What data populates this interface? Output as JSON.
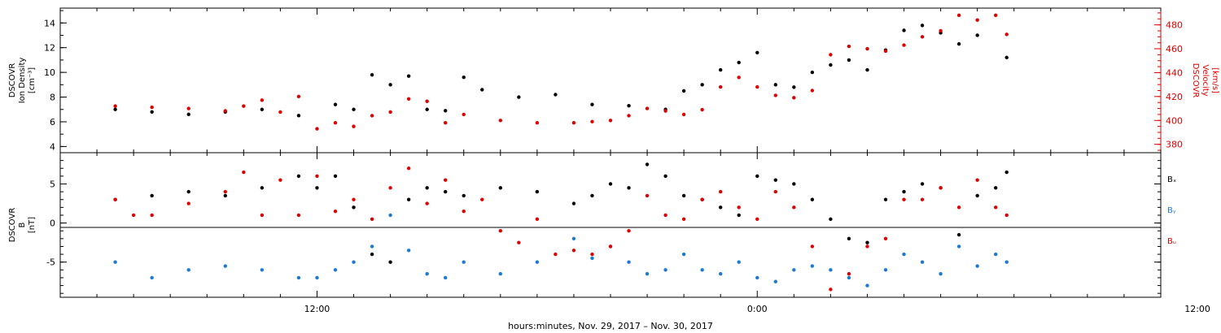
{
  "chart_data": [
    {
      "type": "scatter",
      "panel": "top",
      "y_left_label_lines": [
        "DSCOVR",
        "Ion Density",
        "[cm⁻³]"
      ],
      "y_right_label_lines": [
        "DSCOVR",
        "Velocity",
        "[km/s]"
      ],
      "ylim_left": [
        3.5,
        15.2
      ],
      "ylim_right": [
        373,
        494
      ],
      "yticks_left": [
        "4",
        "6",
        "8",
        "10",
        "12",
        "14"
      ],
      "yticks_right": [
        "380",
        "400",
        "420",
        "440",
        "460",
        "480"
      ],
      "series": [
        {
          "color": "#000000",
          "axis": "left",
          "x": [
            6.5,
            7.5,
            8.5,
            9.5,
            10.5,
            11.5,
            12.5,
            13.0,
            13.5,
            14.0,
            14.5,
            15.0,
            15.5,
            16.0,
            16.5,
            17.5,
            18.5,
            19.5,
            20.5,
            21.5,
            22.0,
            22.5,
            23.0,
            23.5,
            24.0,
            24.5,
            25.0,
            25.5,
            26.0,
            26.5,
            27.0,
            27.5,
            28.0,
            28.5,
            29.0,
            29.5,
            30.0,
            30.8
          ],
          "y": [
            7.0,
            6.8,
            6.6,
            6.8,
            7.0,
            6.5,
            7.4,
            7.0,
            9.8,
            9.0,
            9.7,
            7.0,
            6.9,
            9.6,
            8.6,
            8.0,
            8.2,
            7.4,
            7.3,
            7.0,
            8.5,
            9.0,
            10.2,
            10.8,
            11.6,
            9.0,
            8.8,
            10.0,
            10.6,
            11.0,
            10.2,
            11.8,
            13.4,
            13.8,
            13.2,
            12.3,
            13.0,
            11.2
          ]
        },
        {
          "color": "#e00000",
          "axis": "right",
          "x": [
            6.5,
            7.5,
            8.5,
            9.5,
            10.0,
            10.5,
            11.0,
            11.5,
            12.0,
            12.5,
            13.0,
            13.5,
            14.0,
            14.5,
            15.0,
            15.5,
            16.0,
            17.0,
            18.0,
            19.0,
            19.5,
            20.0,
            20.5,
            21.0,
            21.5,
            22.0,
            22.5,
            23.0,
            23.5,
            24.0,
            24.5,
            25.0,
            25.5,
            26.0,
            26.5,
            27.0,
            27.5,
            28.0,
            28.5,
            29.0,
            29.5,
            30.0,
            30.5,
            30.8
          ],
          "y": [
            412,
            411,
            410,
            408,
            412,
            417,
            407,
            420,
            393,
            398,
            395,
            404,
            407,
            418,
            416,
            398,
            405,
            400,
            398,
            398,
            399,
            400,
            404,
            410,
            408,
            405,
            409,
            428,
            436,
            428,
            421,
            419,
            425,
            455,
            462,
            460,
            458,
            463,
            470,
            475,
            488,
            484,
            488,
            472
          ]
        }
      ]
    },
    {
      "type": "scatter",
      "panel": "bottom",
      "y_left_label_lines": [
        "DSCOVR",
        "B",
        "[nT]"
      ],
      "ylim": [
        -9.5,
        9
      ],
      "yticks": [
        "-5",
        "0",
        "5"
      ],
      "zero_line": true,
      "legend_labels": [
        "Bₓ",
        "Bᵧ",
        "Bᵤ"
      ],
      "series": [
        {
          "name": "Bₓ",
          "color": "#000000",
          "x": [
            6.5,
            7.5,
            8.5,
            9.5,
            10.5,
            11.5,
            12.0,
            12.5,
            13.0,
            13.5,
            14.0,
            14.5,
            15.0,
            15.5,
            16.0,
            17.0,
            18.0,
            19.0,
            19.5,
            20.0,
            20.5,
            21.0,
            21.5,
            22.0,
            22.5,
            23.0,
            23.5,
            24.0,
            24.5,
            25.0,
            25.5,
            26.0,
            26.5,
            27.0,
            27.5,
            28.0,
            28.5,
            29.0,
            29.5,
            30.0,
            30.5,
            30.8
          ],
          "y": [
            3.0,
            3.5,
            4.0,
            3.5,
            4.5,
            6.0,
            4.5,
            6.0,
            2.0,
            -4.0,
            -5.0,
            3.0,
            4.5,
            4.0,
            3.5,
            4.5,
            4.0,
            2.5,
            3.5,
            5.0,
            4.5,
            7.5,
            6.0,
            3.5,
            3.0,
            2.0,
            1.0,
            6.0,
            5.5,
            5.0,
            3.0,
            0.5,
            -2.0,
            -2.5,
            3.0,
            4.0,
            5.0,
            4.5,
            -1.5,
            3.5,
            4.5,
            6.5
          ]
        },
        {
          "name": "Bᵧ",
          "color": "#1a7ad4",
          "x": [
            6.5,
            7.5,
            8.5,
            9.5,
            10.5,
            11.5,
            12.0,
            12.5,
            13.0,
            13.5,
            14.0,
            14.5,
            15.0,
            15.5,
            16.0,
            17.0,
            18.0,
            19.0,
            19.5,
            20.0,
            20.5,
            21.0,
            21.5,
            22.0,
            22.5,
            23.0,
            23.5,
            24.0,
            24.5,
            25.0,
            25.5,
            26.0,
            26.5,
            27.0,
            27.5,
            28.0,
            28.5,
            29.0,
            29.5,
            30.0,
            30.5,
            30.8
          ],
          "y": [
            -5.0,
            -7.0,
            -6.0,
            -5.5,
            -6.0,
            -7.0,
            -7.0,
            -6.0,
            -5.0,
            -3.0,
            1.0,
            -3.5,
            -6.5,
            -7.0,
            -5.0,
            -6.5,
            -5.0,
            -2.0,
            -4.5,
            -3.0,
            -5.0,
            -6.5,
            -6.0,
            -4.0,
            -6.0,
            -6.5,
            -5.0,
            -7.0,
            -7.5,
            -6.0,
            -5.5,
            -6.0,
            -7.0,
            -8.0,
            -6.0,
            -4.0,
            -5.0,
            -6.5,
            -3.0,
            -5.5,
            -4.0,
            -5.0
          ]
        },
        {
          "name": "Bᵤ",
          "color": "#e00000",
          "x": [
            6.5,
            7.0,
            7.5,
            8.5,
            9.5,
            10.0,
            10.5,
            11.0,
            11.5,
            12.0,
            12.5,
            13.0,
            13.5,
            14.0,
            14.5,
            15.0,
            15.5,
            16.0,
            16.5,
            17.0,
            17.5,
            18.0,
            18.5,
            19.0,
            19.5,
            20.0,
            20.5,
            21.0,
            21.5,
            22.0,
            22.5,
            23.0,
            23.5,
            24.0,
            24.5,
            25.0,
            25.5,
            26.0,
            26.5,
            27.0,
            27.5,
            28.0,
            28.5,
            29.0,
            29.5,
            30.0,
            30.5,
            30.8
          ],
          "y": [
            3.0,
            1.0,
            1.0,
            2.5,
            4.0,
            6.5,
            1.0,
            5.5,
            1.0,
            6.0,
            1.5,
            3.0,
            0.5,
            4.5,
            7.0,
            2.5,
            5.5,
            1.5,
            3.0,
            -1.0,
            -2.5,
            0.5,
            -4.0,
            -3.5,
            -4.0,
            -3.0,
            -1.0,
            3.5,
            1.0,
            0.5,
            3.0,
            4.0,
            2.0,
            0.5,
            4.0,
            2.0,
            -3.0,
            -8.5,
            -6.5,
            -3.0,
            -2.0,
            3.0,
            3.0,
            4.5,
            2.0,
            5.5,
            2.0,
            1.0
          ]
        }
      ]
    }
  ],
  "x_axis": {
    "title": "hours:minutes, Nov. 29, 2017 – Nov. 30, 2017",
    "xlim": [
      5.0,
      35.0
    ],
    "tick_labels": [
      "12:00",
      "0:00",
      "12:00"
    ],
    "tick_hours": [
      12,
      24,
      36
    ]
  }
}
